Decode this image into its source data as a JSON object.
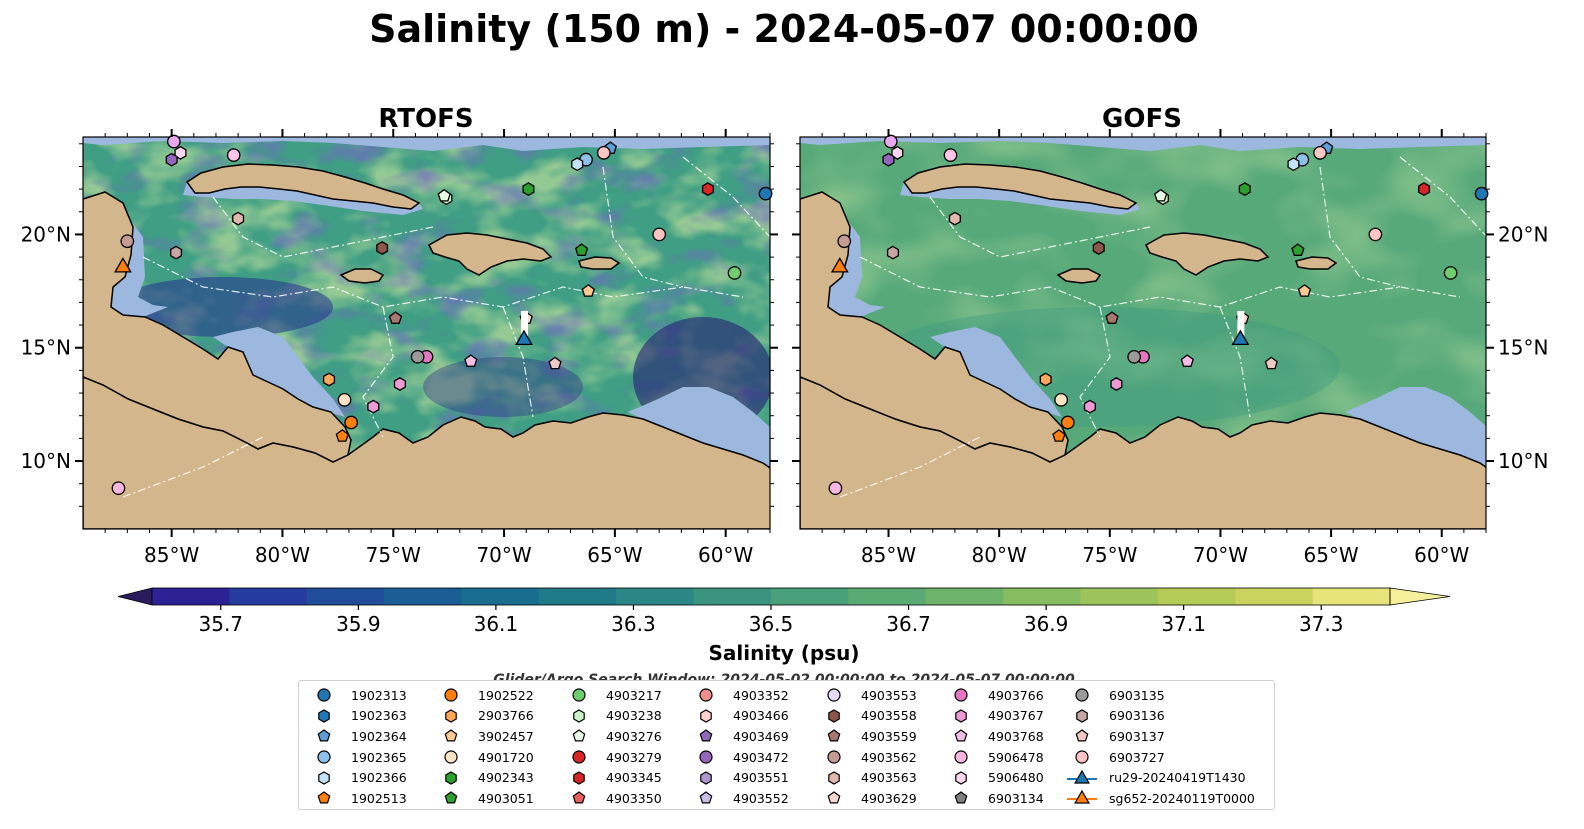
{
  "figure": {
    "title": "Salinity (150 m) - 2024-05-07 00:00:00",
    "search_window": "Glider/Argo Search Window: 2024-05-02 00:00:00 to 2024-05-07 00:00:00"
  },
  "chart_data": [
    {
      "type": "heatmap",
      "title": "RTOFS",
      "lon_ticks": [
        "85°W",
        "80°W",
        "75°W",
        "70°W",
        "65°W",
        "60°W"
      ],
      "lat_ticks": [
        "20°N",
        "15°N",
        "10°N"
      ],
      "xlim": [
        -89,
        -58
      ],
      "ylim": [
        7,
        24.3
      ]
    },
    {
      "type": "heatmap",
      "title": "GOFS",
      "lon_ticks": [
        "85°W",
        "80°W",
        "75°W",
        "70°W",
        "65°W",
        "60°W"
      ],
      "lat_ticks": [
        "20°N",
        "15°N",
        "10°N"
      ],
      "xlim": [
        -89,
        -58
      ],
      "ylim": [
        7,
        24.3
      ]
    }
  ],
  "colorbar": {
    "label": "Salinity (psu)",
    "ticks": [
      "35.7",
      "35.9",
      "36.1",
      "36.3",
      "36.5",
      "36.7",
      "36.9",
      "37.1",
      "37.3"
    ],
    "range": [
      35.6,
      37.4
    ],
    "colors": [
      "#2a1a5e",
      "#2d2295",
      "#263b9e",
      "#1f4d9a",
      "#1b5e96",
      "#196d8f",
      "#1f7a8a",
      "#2a8786",
      "#3a9480",
      "#4aa07a",
      "#5aab73",
      "#6db46a",
      "#85bd60",
      "#9cc45a",
      "#b4cb58",
      "#cad35e",
      "#e6e47a",
      "#f5ee9a"
    ],
    "land_color": "#d3b68b",
    "shelf_color": "#9db8df"
  },
  "floats": [
    {
      "id": "1902313",
      "marker": "circle",
      "color": "#1f77b4",
      "lon": -58.2,
      "lat": 21.8
    },
    {
      "id": "1902363",
      "marker": "hexagon",
      "color": "#1f77b4",
      "lon": null,
      "lat": null
    },
    {
      "id": "1902364",
      "marker": "pentagon",
      "color": "#5e9fd6",
      "lon": -65.2,
      "lat": 23.8
    },
    {
      "id": "1902365",
      "marker": "circle",
      "color": "#8ec1ea",
      "lon": -66.3,
      "lat": 23.3
    },
    {
      "id": "1902366",
      "marker": "hexagon",
      "color": "#c2e2f5",
      "lon": -66.7,
      "lat": 23.1
    },
    {
      "id": "1902513",
      "marker": "pentagon",
      "color": "#ff7f0e",
      "lon": -77.3,
      "lat": 11.1
    },
    {
      "id": "1902522",
      "marker": "circle",
      "color": "#ff7f0e",
      "lon": -76.9,
      "lat": 11.7
    },
    {
      "id": "2903766",
      "marker": "hexagon",
      "color": "#ffa85c",
      "lon": -77.9,
      "lat": 13.6
    },
    {
      "id": "3902457",
      "marker": "pentagon",
      "color": "#ffc994",
      "lon": -66.2,
      "lat": 17.5
    },
    {
      "id": "4901720",
      "marker": "circle",
      "color": "#ffe4c4",
      "lon": -77.2,
      "lat": 12.7
    },
    {
      "id": "4902343",
      "marker": "hexagon",
      "color": "#2ca02c",
      "lon": -68.9,
      "lat": 22.0
    },
    {
      "id": "4903051",
      "marker": "pentagon",
      "color": "#2ca02c",
      "lon": -66.5,
      "lat": 19.3
    },
    {
      "id": "4903217",
      "marker": "circle",
      "color": "#6fcc6f",
      "lon": -59.6,
      "lat": 18.3
    },
    {
      "id": "4903238",
      "marker": "hexagon",
      "color": "#c9f2c9",
      "lon": -72.6,
      "lat": 21.6
    },
    {
      "id": "4903276",
      "marker": "pentagon",
      "color": "#e8fbe8",
      "lon": -72.7,
      "lat": 21.7
    },
    {
      "id": "4903279",
      "marker": "circle",
      "color": "#d62728",
      "lon": null,
      "lat": null
    },
    {
      "id": "4903345",
      "marker": "hexagon",
      "color": "#d62728",
      "lon": -60.8,
      "lat": 22.0
    },
    {
      "id": "4903350",
      "marker": "pentagon",
      "color": "#e8605d",
      "lon": null,
      "lat": null
    },
    {
      "id": "4903352",
      "marker": "circle",
      "color": "#ee8f8c",
      "lon": null,
      "lat": null
    },
    {
      "id": "4903466",
      "marker": "hexagon",
      "color": "#ffd0cc",
      "lon": null,
      "lat": null
    },
    {
      "id": "4903469",
      "marker": "pentagon",
      "color": "#9467bd",
      "lon": null,
      "lat": null
    },
    {
      "id": "4903472",
      "marker": "circle",
      "color": "#9467bd",
      "lon": null,
      "lat": null
    },
    {
      "id": "4903551",
      "marker": "hexagon",
      "color": "#b095d3",
      "lon": null,
      "lat": null
    },
    {
      "id": "4903552",
      "marker": "pentagon",
      "color": "#cbbde6",
      "lon": null,
      "lat": null
    },
    {
      "id": "4903553",
      "marker": "circle",
      "color": "#e7dcf5",
      "lon": null,
      "lat": null
    },
    {
      "id": "4903558",
      "marker": "hexagon",
      "color": "#8c564b",
      "lon": -75.5,
      "lat": 19.4
    },
    {
      "id": "4903559",
      "marker": "pentagon",
      "color": "#a8776d",
      "lon": -74.9,
      "lat": 16.3
    },
    {
      "id": "4903562",
      "marker": "circle",
      "color": "#c49c94",
      "lon": -87.0,
      "lat": 19.7
    },
    {
      "id": "4903563",
      "marker": "hexagon",
      "color": "#e2b8ae",
      "lon": -82.0,
      "lat": 20.7
    },
    {
      "id": "4903629",
      "marker": "pentagon",
      "color": "#f7d9cf",
      "lon": -69.0,
      "lat": 16.3
    },
    {
      "id": "4903766",
      "marker": "circle",
      "color": "#e377c2",
      "lon": -73.5,
      "lat": 14.6
    },
    {
      "id": "4903767",
      "marker": "hexagon",
      "color": "#ec9bd5",
      "lon": -74.7,
      "lat": 13.4
    },
    {
      "id": "4903768",
      "marker": "pentagon",
      "color": "#f4bde6",
      "lon": -71.5,
      "lat": 14.4
    },
    {
      "id": "5906478",
      "marker": "circle",
      "color": "#f7b6e0",
      "lon": -87.4,
      "lat": 8.8
    },
    {
      "id": "5906480",
      "marker": "hexagon",
      "color": "#fbd7ef",
      "lon": -84.6,
      "lat": 23.6
    },
    {
      "id": "6903134",
      "marker": "pentagon",
      "color": "#7f7f7f",
      "lon": null,
      "lat": null
    },
    {
      "id": "6903135",
      "marker": "circle",
      "color": "#9a9a9a",
      "lon": -73.9,
      "lat": 14.6
    },
    {
      "id": "6903136",
      "marker": "hexagon",
      "color": "#c7a6a6",
      "lon": -84.8,
      "lat": 19.2
    },
    {
      "id": "6903137",
      "marker": "pentagon",
      "color": "#f0c8c3",
      "lon": -67.7,
      "lat": 14.3
    },
    {
      "id": "6903727",
      "marker": "circle",
      "color": "#ffc4c4",
      "lon": -63.0,
      "lat": 20.0
    },
    {
      "id": "extra-a",
      "marker": "circle",
      "color": "#e8a8f0",
      "lon": -84.9,
      "lat": 24.1
    },
    {
      "id": "extra-b",
      "marker": "circle",
      "color": "#ffc4e8",
      "lon": -82.2,
      "lat": 23.5
    },
    {
      "id": "extra-c",
      "marker": "circle",
      "color": "#ffc4c4",
      "lon": -65.5,
      "lat": 23.6
    },
    {
      "id": "extra-d",
      "marker": "hexagon",
      "color": "#ec9bd5",
      "lon": -75.9,
      "lat": 12.4
    },
    {
      "id": "extra-e",
      "marker": "hexagon",
      "color": "#9467bd",
      "lon": -85.0,
      "lat": 23.3
    }
  ],
  "legend_columns": [
    [
      {
        "label": "1902313",
        "marker": "circle",
        "color": "#1f77b4"
      },
      {
        "label": "1902363",
        "marker": "hexagon",
        "color": "#1f77b4"
      },
      {
        "label": "1902364",
        "marker": "pentagon",
        "color": "#5e9fd6"
      },
      {
        "label": "1902365",
        "marker": "circle",
        "color": "#8ec1ea"
      },
      {
        "label": "1902366",
        "marker": "hexagon",
        "color": "#c2e2f5"
      },
      {
        "label": "1902513",
        "marker": "pentagon",
        "color": "#ff7f0e"
      }
    ],
    [
      {
        "label": "1902522",
        "marker": "circle",
        "color": "#ff7f0e"
      },
      {
        "label": "2903766",
        "marker": "hexagon",
        "color": "#ffa85c"
      },
      {
        "label": "3902457",
        "marker": "pentagon",
        "color": "#ffc994"
      },
      {
        "label": "4901720",
        "marker": "circle",
        "color": "#ffe4c4"
      },
      {
        "label": "4902343",
        "marker": "hexagon",
        "color": "#2ca02c"
      },
      {
        "label": "4903051",
        "marker": "pentagon",
        "color": "#2ca02c"
      }
    ],
    [
      {
        "label": "4903217",
        "marker": "circle",
        "color": "#6fcc6f"
      },
      {
        "label": "4903238",
        "marker": "hexagon",
        "color": "#c9f2c9"
      },
      {
        "label": "4903276",
        "marker": "pentagon",
        "color": "#e8fbe8"
      },
      {
        "label": "4903279",
        "marker": "circle",
        "color": "#d62728"
      },
      {
        "label": "4903345",
        "marker": "hexagon",
        "color": "#d62728"
      },
      {
        "label": "4903350",
        "marker": "pentagon",
        "color": "#e8605d"
      }
    ],
    [
      {
        "label": "4903352",
        "marker": "circle",
        "color": "#ee8f8c"
      },
      {
        "label": "4903466",
        "marker": "hexagon",
        "color": "#ffd0cc"
      },
      {
        "label": "4903469",
        "marker": "pentagon",
        "color": "#9467bd"
      },
      {
        "label": "4903472",
        "marker": "circle",
        "color": "#9467bd"
      },
      {
        "label": "4903551",
        "marker": "hexagon",
        "color": "#b095d3"
      },
      {
        "label": "4903552",
        "marker": "pentagon",
        "color": "#cbbde6"
      }
    ],
    [
      {
        "label": "4903553",
        "marker": "circle",
        "color": "#e7dcf5"
      },
      {
        "label": "4903558",
        "marker": "hexagon",
        "color": "#8c564b"
      },
      {
        "label": "4903559",
        "marker": "pentagon",
        "color": "#a8776d"
      },
      {
        "label": "4903562",
        "marker": "circle",
        "color": "#c49c94"
      },
      {
        "label": "4903563",
        "marker": "hexagon",
        "color": "#e2b8ae"
      },
      {
        "label": "4903629",
        "marker": "pentagon",
        "color": "#f7d9cf"
      }
    ],
    [
      {
        "label": "4903766",
        "marker": "circle",
        "color": "#e377c2"
      },
      {
        "label": "4903767",
        "marker": "hexagon",
        "color": "#ec9bd5"
      },
      {
        "label": "4903768",
        "marker": "pentagon",
        "color": "#f4bde6"
      },
      {
        "label": "5906478",
        "marker": "circle",
        "color": "#f7b6e0"
      },
      {
        "label": "5906480",
        "marker": "hexagon",
        "color": "#fbd7ef"
      },
      {
        "label": "6903134",
        "marker": "pentagon",
        "color": "#7f7f7f"
      }
    ],
    [
      {
        "label": "6903135",
        "marker": "circle",
        "color": "#9a9a9a"
      },
      {
        "label": "6903136",
        "marker": "hexagon",
        "color": "#c7a6a6"
      },
      {
        "label": "6903137",
        "marker": "pentagon",
        "color": "#f0c8c3"
      },
      {
        "label": "6903727",
        "marker": "circle",
        "color": "#ffc4c4"
      },
      {
        "label": "ru29-20240419T1430",
        "marker": "triangle-line",
        "color": "#1f77b4"
      },
      {
        "label": "sg652-20240119T0000",
        "marker": "triangle-line",
        "color": "#ff7f0e"
      }
    ]
  ],
  "gliders": [
    {
      "id": "ru29-20240419T1430",
      "color": "#1f77b4",
      "lon": -69.1,
      "lat": 15.3
    },
    {
      "id": "sg652-20240119T0000",
      "color": "#ff7f0e",
      "lon": -87.2,
      "lat": 18.5
    }
  ]
}
